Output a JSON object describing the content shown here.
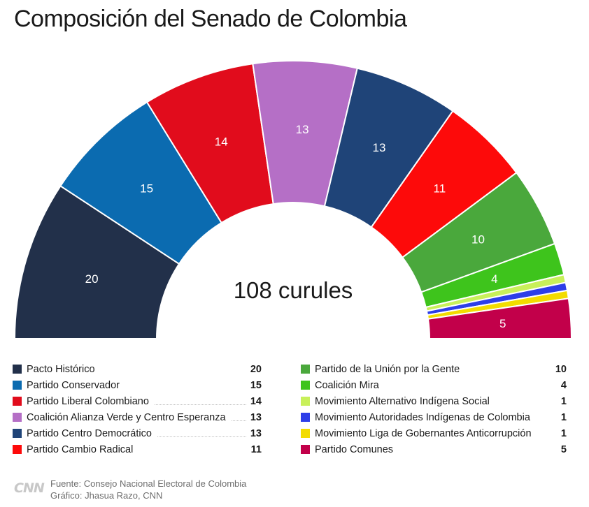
{
  "title": "Composición del Senado de Colombia",
  "chart_data": {
    "type": "pie",
    "variant": "semicircle-parliament",
    "title": "Composición del Senado de Colombia",
    "center_label": "108 curules",
    "total": 108,
    "series": [
      {
        "name": "Pacto Histórico",
        "value": 20,
        "color": "#22304a",
        "label": "20"
      },
      {
        "name": "Partido Conservador",
        "value": 15,
        "color": "#0b6bb0",
        "label": "15"
      },
      {
        "name": "Partido Liberal Colombiano",
        "value": 14,
        "color": "#e10c1c",
        "label": "14"
      },
      {
        "name": "Coalición Alianza Verde y Centro Esperanza",
        "value": 13,
        "color": "#b56fc6",
        "label": "13"
      },
      {
        "name": "Partido Centro Democrático",
        "value": 13,
        "color": "#1f4478",
        "label": "13"
      },
      {
        "name": "Partido Cambio Radical",
        "value": 11,
        "color": "#fd0a0a",
        "label": "11"
      },
      {
        "name": "Partido de la Unión por la Gente",
        "value": 10,
        "color": "#4aa83c",
        "label": "10"
      },
      {
        "name": "Coalición Mira",
        "value": 4,
        "color": "#3ec41c",
        "label": "4"
      },
      {
        "name": "Movimiento Alternativo Indígena Social",
        "value": 1,
        "color": "#c8f05a",
        "label": ""
      },
      {
        "name": "Movimiento Autoridades Indígenas de Colombia",
        "value": 1,
        "color": "#2d3ee8",
        "label": ""
      },
      {
        "name": "Movimiento Liga de Gobernantes Anticorrupción",
        "value": 1,
        "color": "#f2dc00",
        "label": ""
      },
      {
        "name": "Partido Comunes",
        "value": 5,
        "color": "#c2004a",
        "label": "5"
      }
    ]
  },
  "legend": {
    "left": [
      {
        "name": "Pacto Histórico",
        "value": "20",
        "color": "#22304a",
        "dots": false
      },
      {
        "name": "Partido Conservador",
        "value": "15",
        "color": "#0b6bb0",
        "dots": false
      },
      {
        "name": "Partido Liberal Colombiano",
        "value": "14",
        "color": "#e10c1c",
        "dots": true
      },
      {
        "name": "Coalición Alianza Verde y Centro Esperanza",
        "value": "13",
        "color": "#b56fc6",
        "dots": true
      },
      {
        "name": "Partido Centro Democrático",
        "value": "13",
        "color": "#1f4478",
        "dots": true
      },
      {
        "name": "Partido Cambio Radical",
        "value": "11",
        "color": "#fd0a0a",
        "dots": false
      }
    ],
    "right": [
      {
        "name": "Partido de la Unión por la Gente",
        "value": "10",
        "color": "#4aa83c",
        "dots": false
      },
      {
        "name": "Coalición Mira",
        "value": "4",
        "color": "#3ec41c",
        "dots": false
      },
      {
        "name": "Movimiento Alternativo Indígena Social",
        "value": "1",
        "color": "#c8f05a",
        "dots": false
      },
      {
        "name": "Movimiento Autoridades Indígenas de Colombia",
        "value": "1",
        "color": "#2d3ee8",
        "dots": false
      },
      {
        "name": "Movimiento Liga de Gobernantes Anticorrupción",
        "value": "1",
        "color": "#f2dc00",
        "dots": false
      },
      {
        "name": "Partido Comunes",
        "value": "5",
        "color": "#c2004a",
        "dots": false
      }
    ]
  },
  "footer": {
    "logo": "CNN",
    "source": "Fuente: Consejo Nacional Electoral de Colombia",
    "credit": "Gráfico: Jhasua Razo, CNN"
  }
}
